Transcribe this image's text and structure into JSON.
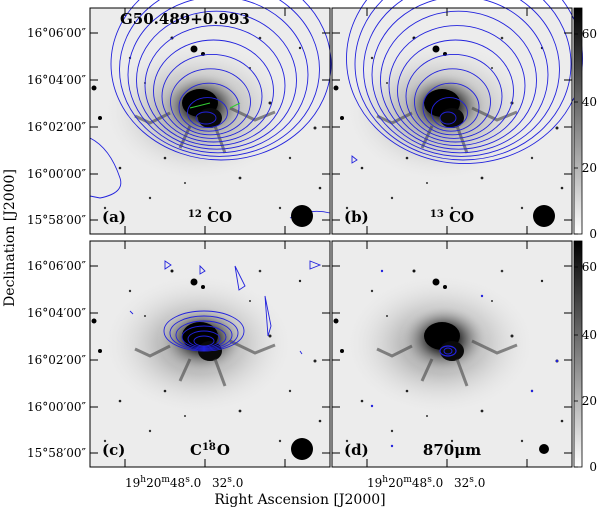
{
  "figure": {
    "source_name": "G50.489+0.993",
    "ylabel": "Declination [J2000]",
    "xlabel": "Right Ascension [J2000]",
    "dec_ticks": [
      "16°06′00″",
      "16°04′00″",
      "16°02′00″",
      "16°00′00″",
      "15°58′00″"
    ],
    "ra_ticks": [
      {
        "h": "19",
        "hs": "h",
        "m": "20",
        "ms": "m",
        "s": "48",
        "ss": "s",
        "frac": ".0"
      },
      {
        "s": "32",
        "ss": "s",
        "frac": ".0"
      }
    ],
    "colorbar_ticks": [
      "60",
      "40",
      "20",
      "0"
    ],
    "panels": [
      {
        "id": "a",
        "tag": "(a)",
        "tracer_mass": "12",
        "tracer_base": "CO",
        "contour_color": "#2222dd"
      },
      {
        "id": "b",
        "tag": "(b)",
        "tracer_mass": "13",
        "tracer_base": "CO",
        "contour_color": "#2222dd"
      },
      {
        "id": "c",
        "tag": "(c)",
        "tracer_base": "C",
        "tracer_mass": "18",
        "tracer_suffix": "O",
        "contour_color": "#2222dd"
      },
      {
        "id": "d",
        "tag": "(d)",
        "tracer_full": "870μm",
        "contour_color": "#2222dd"
      }
    ]
  }
}
